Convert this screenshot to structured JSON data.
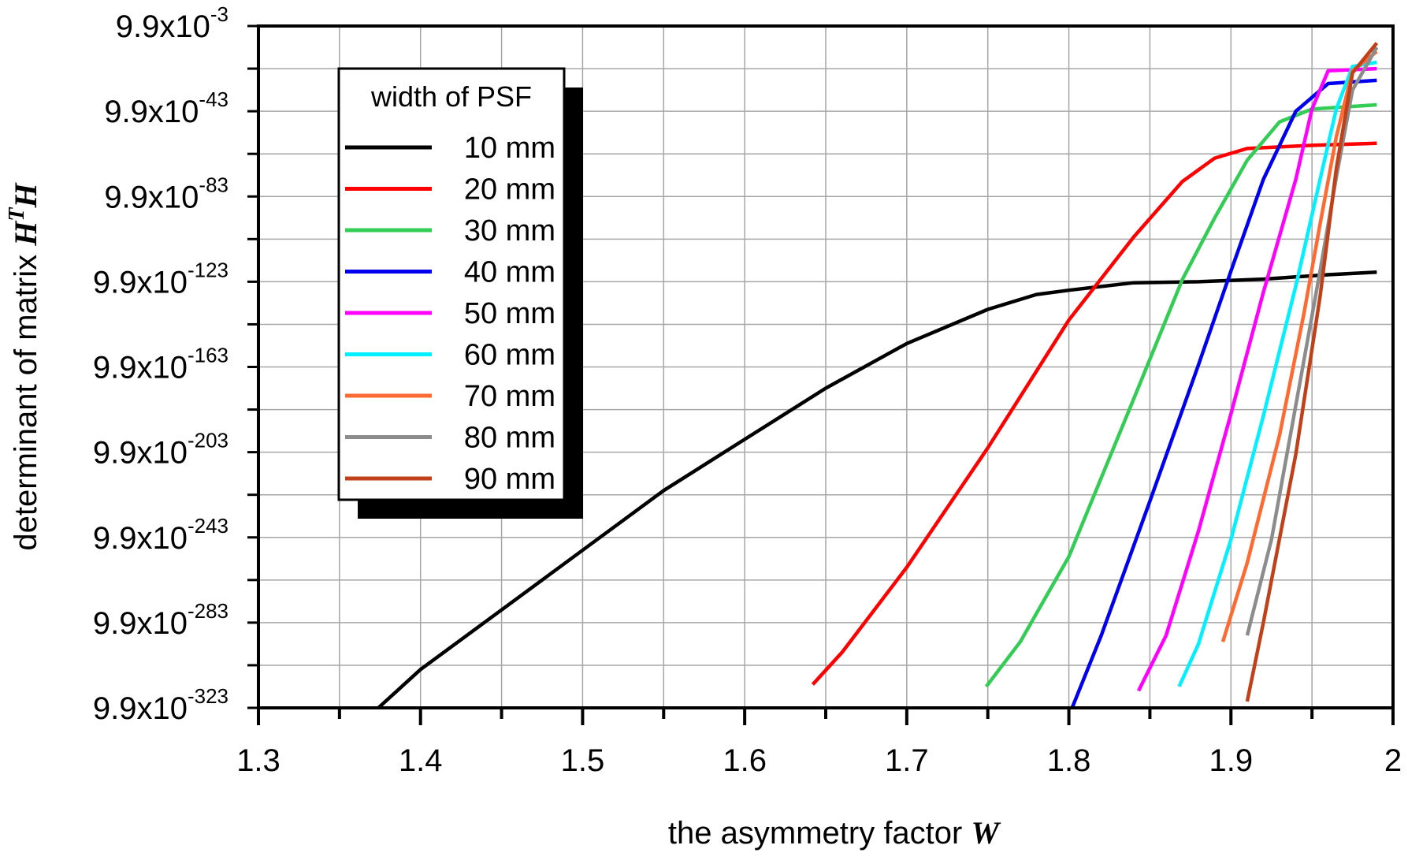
{
  "chart_data": {
    "type": "line",
    "title": "",
    "xlabel": "the asymmetry factor ",
    "xlabel_symbol": "W",
    "ylabel": "determinant of matrix ",
    "ylabel_symbol": "H",
    "ylabel_superscript": "T",
    "ylabel_symbol2": "H",
    "xlim": [
      1.3,
      2.0
    ],
    "x_ticks": [
      1.3,
      1.4,
      1.5,
      1.6,
      1.7,
      1.8,
      1.9,
      2.0
    ],
    "x_tick_labels": [
      "1.3",
      "1.4",
      "1.5",
      "1.6",
      "1.7",
      "1.8",
      "1.9",
      "2"
    ],
    "y_scale": "log10",
    "ylim_log10": [
      -323,
      -3
    ],
    "y_ticks_log10": [
      -3,
      -43,
      -83,
      -123,
      -163,
      -203,
      -243,
      -283,
      -323
    ],
    "y_tick_base": "9.9x10",
    "y_tick_exponents": [
      "-3",
      "-43",
      "-83",
      "-123",
      "-163",
      "-203",
      "-243",
      "-283",
      "-323"
    ],
    "grid": true,
    "legend": {
      "title": "width of PSF",
      "placement": "top-left"
    },
    "series": [
      {
        "name": "10 mm",
        "color": "#000000",
        "x": [
          1.374,
          1.4,
          1.45,
          1.5,
          1.55,
          1.6,
          1.65,
          1.7,
          1.75,
          1.78,
          1.8,
          1.84,
          1.88,
          1.92,
          1.96,
          1.99
        ],
        "y_log10": [
          -323,
          -305,
          -277,
          -249,
          -221,
          -197,
          -173,
          -152,
          -136,
          -129,
          -127,
          -123.5,
          -123,
          -121.8,
          -119.7,
          -118.5
        ]
      },
      {
        "name": "20 mm",
        "color": "#ff0000",
        "x": [
          1.642,
          1.66,
          1.7,
          1.75,
          1.8,
          1.84,
          1.87,
          1.89,
          1.91,
          1.95,
          1.99
        ],
        "y_log10": [
          -312,
          -297,
          -257,
          -201,
          -141,
          -102,
          -76,
          -65,
          -60.5,
          -59,
          -58
        ]
      },
      {
        "name": "30 mm",
        "color": "#33cc55",
        "x": [
          1.749,
          1.77,
          1.8,
          1.84,
          1.87,
          1.89,
          1.91,
          1.93,
          1.95,
          1.99
        ],
        "y_log10": [
          -313,
          -292,
          -252,
          -178,
          -122,
          -93,
          -66,
          -48,
          -42,
          -40
        ]
      },
      {
        "name": "40 mm",
        "color": "#0000ee",
        "x": [
          1.802,
          1.82,
          1.85,
          1.88,
          1.9,
          1.92,
          1.94,
          1.96,
          1.99
        ],
        "y_log10": [
          -323,
          -289,
          -226,
          -162,
          -118,
          -75,
          -43,
          -30,
          -28.5
        ]
      },
      {
        "name": "50 mm",
        "color": "#ff00ff",
        "x": [
          1.843,
          1.86,
          1.88,
          1.9,
          1.92,
          1.94,
          1.95,
          1.96,
          1.99
        ],
        "y_log10": [
          -315,
          -289,
          -240,
          -185,
          -128,
          -75,
          -42,
          -24,
          -23
        ]
      },
      {
        "name": "60 mm",
        "color": "#00f0ff",
        "x": [
          1.868,
          1.88,
          1.9,
          1.92,
          1.94,
          1.955,
          1.965,
          1.975,
          1.99
        ],
        "y_log10": [
          -313,
          -293,
          -244,
          -186,
          -125,
          -75,
          -42,
          -22,
          -20
        ]
      },
      {
        "name": "70 mm",
        "color": "#ff6a33",
        "x": [
          1.895,
          1.91,
          1.93,
          1.945,
          1.955,
          1.965,
          1.975,
          1.99
        ],
        "y_log10": [
          -292,
          -255,
          -195,
          -138,
          -96,
          -55,
          -24,
          -15
        ]
      },
      {
        "name": "80 mm",
        "color": "#8c8c8c",
        "x": [
          1.91,
          1.925,
          1.94,
          1.955,
          1.965,
          1.975,
          1.99
        ],
        "y_log10": [
          -289,
          -244,
          -181,
          -118,
          -74,
          -33,
          -13
        ]
      },
      {
        "name": "90 mm",
        "color": "#c0401a",
        "x": [
          1.91,
          1.92,
          1.94,
          1.955,
          1.965,
          1.975,
          1.99
        ],
        "y_log10": [
          -320,
          -283,
          -204,
          -130,
          -70,
          -25,
          -11
        ]
      }
    ]
  }
}
